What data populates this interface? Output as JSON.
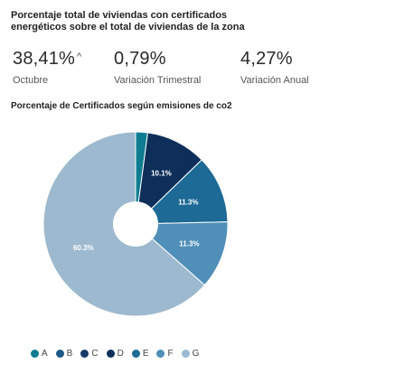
{
  "header": {
    "title": "Porcentaje total de viviendas con certificados energéticos sobre el total de viviendas de la zona"
  },
  "kpis": [
    {
      "value": "38,41%",
      "trend": "up",
      "trend_glyph": "^",
      "label": "Octubre"
    },
    {
      "value": "0,79%",
      "label": "Variación Trimestral"
    },
    {
      "value": "4,27%",
      "label": "Variación Anual"
    }
  ],
  "chart_data": {
    "type": "pie",
    "title": "Porcentaje de Certificados según emisiones de co2",
    "categories": [
      "A",
      "B",
      "C",
      "D",
      "E",
      "F",
      "G"
    ],
    "values": [
      2.0,
      0.0,
      0.0,
      10.1,
      11.3,
      11.3,
      60.3
    ],
    "labels": [
      "",
      "",
      "",
      "10.1%",
      "11.3%",
      "11.3%",
      "60.3%"
    ],
    "colors": [
      "#0f7d91",
      "#1f5a86",
      "#173a66",
      "#0d2f5a",
      "#1d6a96",
      "#4f8fb8",
      "#9db9cf"
    ],
    "legend_position": "bottom"
  }
}
